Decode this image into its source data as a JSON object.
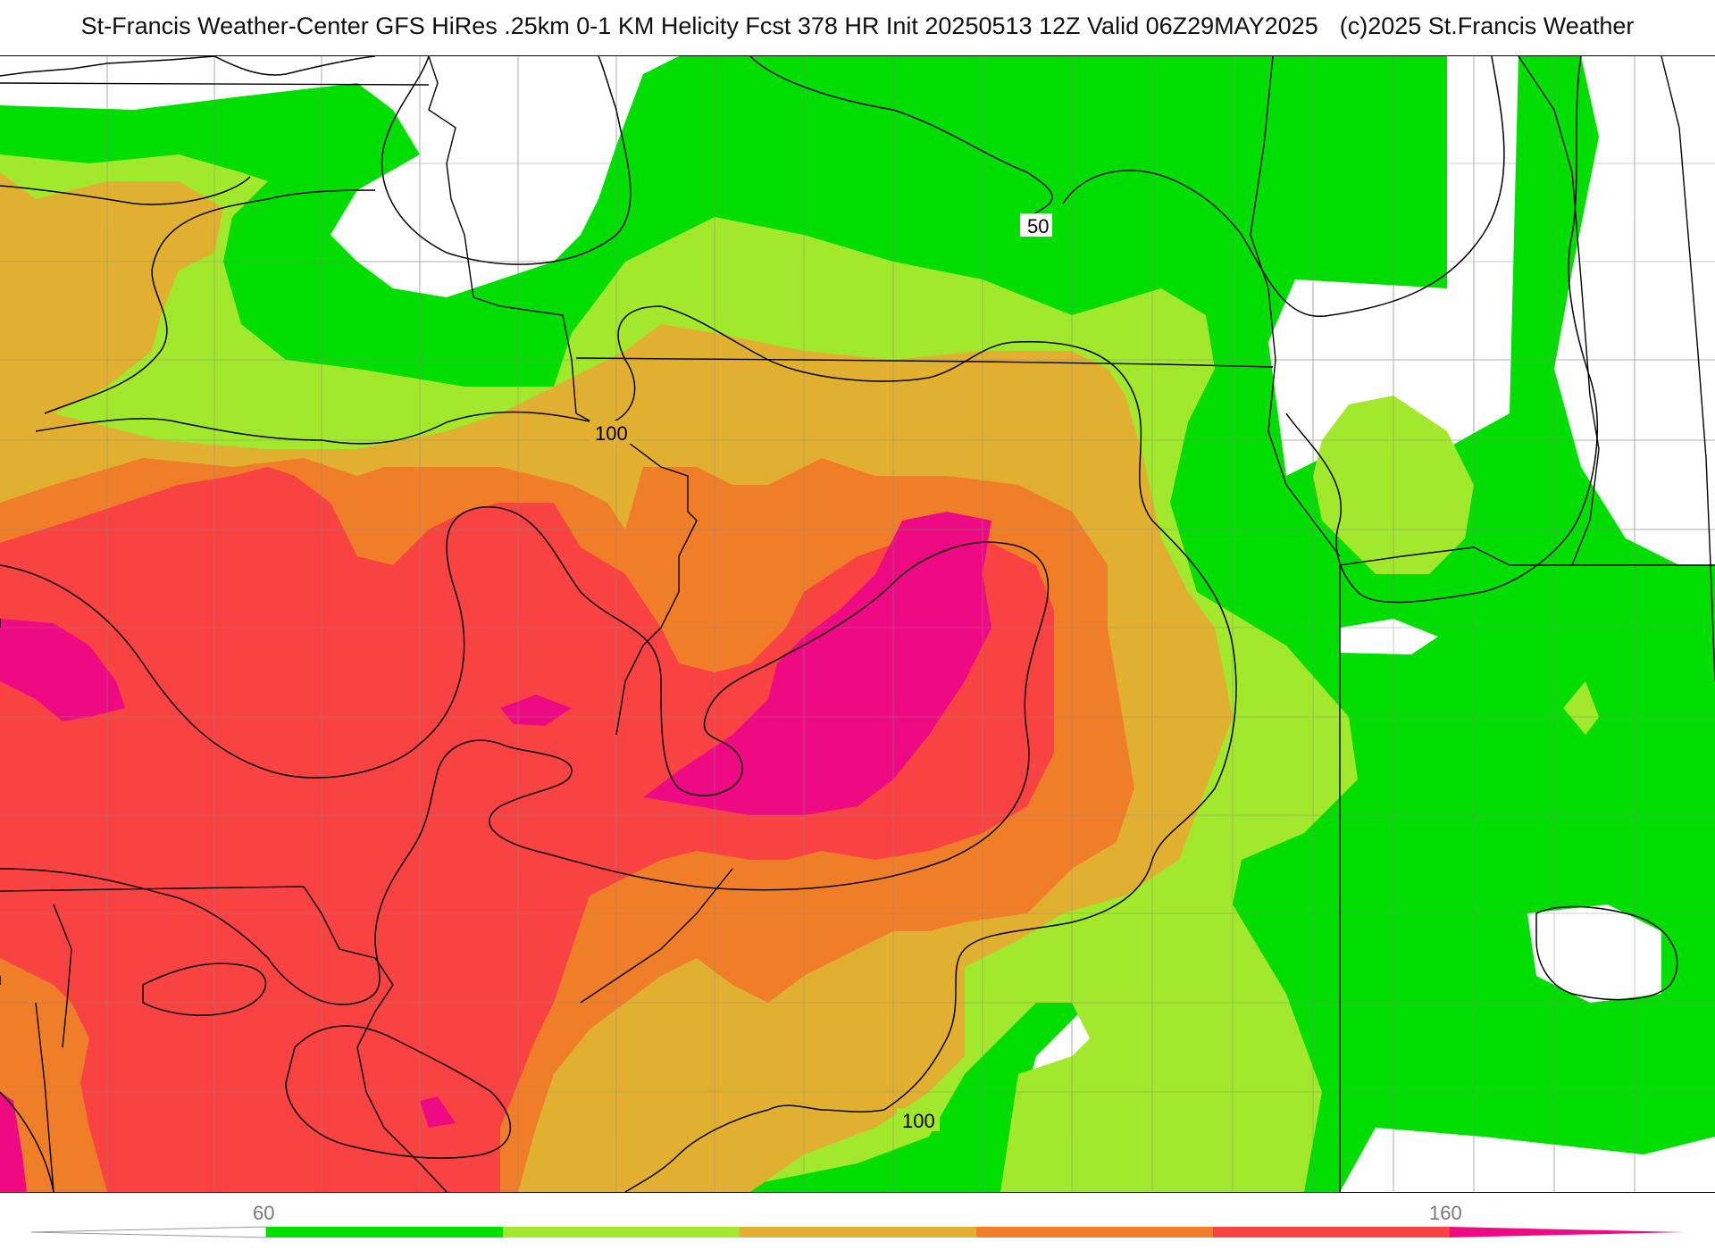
{
  "header": {
    "title_left": "St-Francis Weather-Center GFS HiRes .25km 0-1 KM Helicity Fcst 378 HR Init 20250513 12Z  Valid 06Z29MAY2025",
    "title_right": "(c)2025 St.Francis Weather"
  },
  "contours": {
    "label_50": "50",
    "label_100a": "100",
    "label_100b": "100"
  },
  "colorbar": {
    "tick_low": "60",
    "tick_high": "160",
    "colors": [
      "#00dd00",
      "#a2e82c",
      "#e2b030",
      "#f07e28",
      "#f94242",
      "#ee0a82"
    ]
  },
  "map_colors": {
    "background": "#ffffff",
    "borders": "#000000",
    "counties": "#bbbbbb"
  }
}
